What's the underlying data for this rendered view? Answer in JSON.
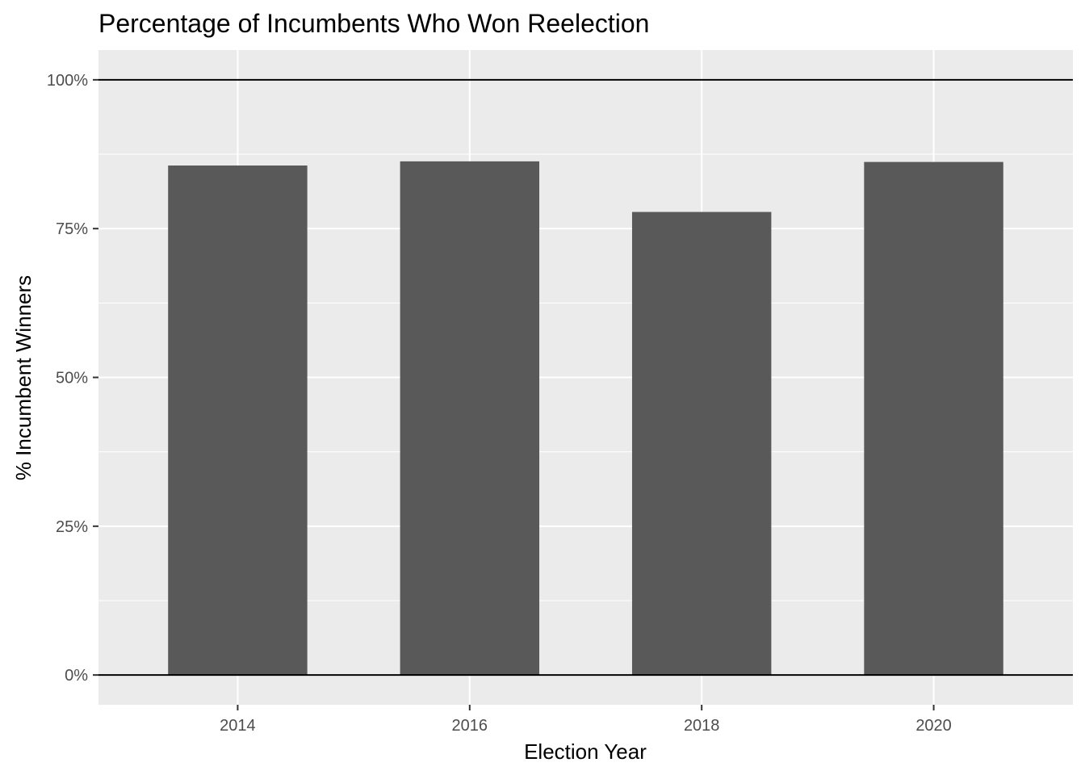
{
  "chart_data": {
    "type": "bar",
    "title": "Percentage of Incumbents Who Won Reelection",
    "xlabel": "Election Year",
    "ylabel": "% Incumbent Winners",
    "categories": [
      "2014",
      "2016",
      "2018",
      "2020"
    ],
    "x": [
      2014,
      2016,
      2018,
      2020
    ],
    "values": [
      0.856,
      0.863,
      0.778,
      0.862
    ],
    "ylim": [
      -0.05,
      1.05
    ],
    "xlim": [
      2012.8,
      2021.2
    ],
    "y_ticks": [
      0,
      0.25,
      0.5,
      0.75,
      1.0
    ],
    "y_tick_labels": [
      "0%",
      "25%",
      "50%",
      "75%",
      "100%"
    ],
    "x_ticks": [
      2014,
      2016,
      2018,
      2020
    ],
    "x_tick_labels": [
      "2014",
      "2016",
      "2018",
      "2020"
    ],
    "reference_lines": [
      0,
      1.0
    ],
    "bar_width_years": 1.2,
    "grid": true,
    "legend": "none",
    "colors": {
      "bar": "#595959",
      "panel": "#ebebeb",
      "grid": "#ffffff",
      "reference_line": "#000000"
    }
  }
}
